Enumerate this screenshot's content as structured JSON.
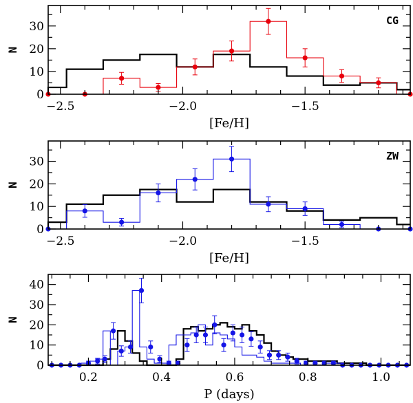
{
  "chart_data": [
    {
      "type": "histogram",
      "panel_label": "CG",
      "xlabel": "[Fe/H]",
      "ylabel": "N",
      "xlim": [
        -2.55,
        -1.07
      ],
      "ylim": [
        0,
        39
      ],
      "xticks": [
        -2.5,
        -2.0,
        -1.5
      ],
      "xtick_labels": [
        "−2.5",
        "−2.0",
        "−1.5"
      ],
      "minor_xticks": [
        -2.4,
        -2.3,
        -2.2,
        -2.1,
        -1.9,
        -1.8,
        -1.7,
        -1.6,
        -1.4,
        -1.3,
        -1.2,
        -1.1
      ],
      "yticks": [
        0,
        10,
        20,
        30
      ],
      "ytick_labels": [
        "0",
        "10",
        "20",
        "30"
      ],
      "minor_yticks": [
        5,
        15,
        25,
        35
      ],
      "reference": {
        "name": "black histogram",
        "color": "#000000",
        "edges": [
          -2.55,
          -2.475,
          -2.325,
          -2.175,
          -2.025,
          -1.875,
          -1.725,
          -1.575,
          -1.425,
          -1.275,
          -1.125,
          -1.07
        ],
        "counts": [
          3,
          11,
          15,
          17.5,
          12,
          17.5,
          12,
          8,
          4,
          5,
          2
        ]
      },
      "observed": {
        "name": "red histogram",
        "color": "#e8000b",
        "edges": [
          -2.55,
          -2.475,
          -2.325,
          -2.175,
          -2.025,
          -1.875,
          -1.725,
          -1.575,
          -1.425,
          -1.275,
          -1.125,
          -1.07
        ],
        "counts": [
          0,
          0,
          7,
          3,
          12,
          19,
          32,
          16,
          8,
          5,
          0
        ],
        "points": [
          {
            "x": -2.55,
            "y": 0,
            "err": 0
          },
          {
            "x": -2.4,
            "y": 0,
            "err": 0
          },
          {
            "x": -2.25,
            "y": 7,
            "err": 2.6
          },
          {
            "x": -2.1,
            "y": 3,
            "err": 1.7
          },
          {
            "x": -1.95,
            "y": 12,
            "err": 3.5
          },
          {
            "x": -1.8,
            "y": 19,
            "err": 4.4
          },
          {
            "x": -1.65,
            "y": 32,
            "err": 5.7
          },
          {
            "x": -1.5,
            "y": 16,
            "err": 4.0
          },
          {
            "x": -1.35,
            "y": 8,
            "err": 2.8
          },
          {
            "x": -1.2,
            "y": 5,
            "err": 2.2
          },
          {
            "x": -1.07,
            "y": 0,
            "err": 0
          }
        ]
      }
    },
    {
      "type": "histogram",
      "panel_label": "ZW",
      "xlabel": "[Fe/H]",
      "ylabel": "N",
      "xlim": [
        -2.55,
        -1.07
      ],
      "ylim": [
        0,
        39
      ],
      "xticks": [
        -2.5,
        -2.0,
        -1.5
      ],
      "xtick_labels": [
        "−2.5",
        "−2.0",
        "−1.5"
      ],
      "minor_xticks": [
        -2.4,
        -2.3,
        -2.2,
        -2.1,
        -1.9,
        -1.8,
        -1.7,
        -1.6,
        -1.4,
        -1.3,
        -1.2,
        -1.1
      ],
      "yticks": [
        0,
        10,
        20,
        30
      ],
      "ytick_labels": [
        "0",
        "10",
        "20",
        "30"
      ],
      "minor_yticks": [
        5,
        15,
        25,
        35
      ],
      "reference": {
        "name": "black histogram",
        "color": "#000000",
        "edges": [
          -2.55,
          -2.475,
          -2.325,
          -2.175,
          -2.025,
          -1.875,
          -1.725,
          -1.575,
          -1.425,
          -1.275,
          -1.125,
          -1.07
        ],
        "counts": [
          3,
          11,
          15,
          17.5,
          12,
          17.5,
          12,
          8,
          4,
          5,
          2
        ]
      },
      "observed": {
        "name": "blue histogram",
        "color": "#1515e6",
        "edges": [
          -2.55,
          -2.475,
          -2.325,
          -2.175,
          -2.025,
          -1.875,
          -1.725,
          -1.575,
          -1.425,
          -1.275,
          -1.125,
          -1.07
        ],
        "counts": [
          0,
          8,
          3,
          16,
          22,
          31,
          11,
          9,
          2,
          0,
          0
        ],
        "points": [
          {
            "x": -2.55,
            "y": 0,
            "err": 0
          },
          {
            "x": -2.4,
            "y": 8,
            "err": 2.8
          },
          {
            "x": -2.25,
            "y": 3,
            "err": 1.7
          },
          {
            "x": -2.1,
            "y": 16,
            "err": 4.0
          },
          {
            "x": -1.95,
            "y": 22,
            "err": 4.7
          },
          {
            "x": -1.8,
            "y": 31,
            "err": 5.6
          },
          {
            "x": -1.65,
            "y": 11,
            "err": 3.3
          },
          {
            "x": -1.5,
            "y": 9,
            "err": 3.0
          },
          {
            "x": -1.35,
            "y": 2,
            "err": 1.4
          },
          {
            "x": -1.2,
            "y": 0,
            "err": 0
          },
          {
            "x": -1.07,
            "y": 0,
            "err": 0
          }
        ]
      }
    },
    {
      "type": "histogram",
      "xlabel": "P (days)",
      "ylabel": "N",
      "xlim": [
        0.09,
        1.08
      ],
      "ylim": [
        0,
        45
      ],
      "xticks": [
        0.2,
        0.4,
        0.6,
        0.8,
        1.0
      ],
      "xtick_labels": [
        "0.2",
        "0.4",
        "0.6",
        "0.8",
        "1.0"
      ],
      "minor_xticks": [
        0.1,
        0.15,
        0.25,
        0.3,
        0.35,
        0.45,
        0.5,
        0.55,
        0.65,
        0.7,
        0.75,
        0.85,
        0.9,
        0.95,
        1.05
      ],
      "yticks": [
        0,
        10,
        20,
        30,
        40
      ],
      "ytick_labels": [
        "0",
        "10",
        "20",
        "30",
        "40"
      ],
      "minor_yticks": [
        5,
        15,
        25,
        35
      ],
      "reference": {
        "name": "black histogram",
        "color": "#000000",
        "edges": [
          0.09,
          0.24,
          0.26,
          0.28,
          0.3,
          0.32,
          0.34,
          0.36,
          0.38,
          0.4,
          0.44,
          0.46,
          0.48,
          0.5,
          0.52,
          0.54,
          0.56,
          0.58,
          0.6,
          0.62,
          0.64,
          0.66,
          0.68,
          0.7,
          0.72,
          0.74,
          0.76,
          0.78,
          0.8,
          0.84,
          0.88,
          0.92,
          0.96,
          1.08
        ],
        "counts": [
          0,
          3,
          8,
          17,
          12,
          6,
          2,
          0,
          0,
          0,
          3,
          18,
          19,
          17,
          18,
          20,
          21,
          19,
          18,
          20,
          17,
          15,
          11,
          7,
          5,
          4,
          3,
          3,
          2,
          2,
          1,
          1,
          0
        ]
      },
      "observed": {
        "name": "blue histogram",
        "color": "#1515e6",
        "edges": [
          0.09,
          0.1,
          0.12,
          0.14,
          0.16,
          0.18,
          0.2,
          0.22,
          0.24,
          0.26,
          0.28,
          0.3,
          0.32,
          0.34,
          0.36,
          0.38,
          0.4,
          0.42,
          0.44,
          0.46,
          0.48,
          0.5,
          0.52,
          0.54,
          0.56,
          0.58,
          0.6,
          0.62,
          0.64,
          0.66,
          0.68,
          0.7,
          0.72,
          0.74,
          0.76,
          0.78,
          0.8,
          0.82,
          0.84,
          0.86,
          0.88,
          0.9,
          0.92,
          0.94,
          0.96,
          0.98,
          1.0,
          1.02,
          1.04,
          1.06,
          1.08
        ],
        "counts": [
          0,
          0,
          0,
          0,
          0,
          1,
          2,
          3,
          17,
          0,
          7,
          9,
          37,
          9,
          3,
          1,
          1,
          10,
          15,
          15,
          16,
          20,
          10,
          16,
          15,
          13,
          9,
          5,
          5,
          4,
          2,
          1,
          1,
          1,
          1,
          0,
          0,
          0,
          1,
          1,
          1,
          0,
          0,
          0,
          0,
          0,
          0,
          0,
          0,
          0
        ],
        "points": [
          {
            "x": 0.1,
            "y": 0,
            "err": 0
          },
          {
            "x": 0.125,
            "y": 0,
            "err": 0
          },
          {
            "x": 0.15,
            "y": 0,
            "err": 0
          },
          {
            "x": 0.175,
            "y": 0,
            "err": 0
          },
          {
            "x": 0.2,
            "y": 1,
            "err": 1
          },
          {
            "x": 0.225,
            "y": 2,
            "err": 1.4
          },
          {
            "x": 0.245,
            "y": 3,
            "err": 1.7
          },
          {
            "x": 0.268,
            "y": 17,
            "err": 4.1
          },
          {
            "x": 0.29,
            "y": 7,
            "err": 2.6
          },
          {
            "x": 0.315,
            "y": 9,
            "err": 3
          },
          {
            "x": 0.345,
            "y": 37,
            "err": 6.1
          },
          {
            "x": 0.37,
            "y": 9,
            "err": 3
          },
          {
            "x": 0.395,
            "y": 3,
            "err": 1.7
          },
          {
            "x": 0.42,
            "y": 1,
            "err": 1
          },
          {
            "x": 0.445,
            "y": 1,
            "err": 1
          },
          {
            "x": 0.47,
            "y": 10,
            "err": 3.2
          },
          {
            "x": 0.495,
            "y": 15,
            "err": 3.9
          },
          {
            "x": 0.52,
            "y": 15,
            "err": 3.9
          },
          {
            "x": 0.545,
            "y": 20,
            "err": 4.5
          },
          {
            "x": 0.57,
            "y": 10,
            "err": 3.2
          },
          {
            "x": 0.595,
            "y": 16,
            "err": 4
          },
          {
            "x": 0.62,
            "y": 15,
            "err": 3.9
          },
          {
            "x": 0.645,
            "y": 13,
            "err": 3.6
          },
          {
            "x": 0.67,
            "y": 9,
            "err": 3
          },
          {
            "x": 0.695,
            "y": 5,
            "err": 2.2
          },
          {
            "x": 0.72,
            "y": 5,
            "err": 2.2
          },
          {
            "x": 0.745,
            "y": 4,
            "err": 2
          },
          {
            "x": 0.77,
            "y": 2,
            "err": 1.4
          },
          {
            "x": 0.795,
            "y": 1,
            "err": 1
          },
          {
            "x": 0.82,
            "y": 1,
            "err": 1
          },
          {
            "x": 0.845,
            "y": 1,
            "err": 1
          },
          {
            "x": 0.87,
            "y": 1,
            "err": 1
          },
          {
            "x": 0.895,
            "y": 0,
            "err": 0
          },
          {
            "x": 0.92,
            "y": 0,
            "err": 0
          },
          {
            "x": 0.945,
            "y": 0,
            "err": 0
          },
          {
            "x": 0.97,
            "y": 0,
            "err": 0
          },
          {
            "x": 0.995,
            "y": 0,
            "err": 0
          },
          {
            "x": 1.02,
            "y": 0,
            "err": 0
          },
          {
            "x": 1.045,
            "y": 0,
            "err": 0
          },
          {
            "x": 1.07,
            "y": 0,
            "err": 0
          }
        ]
      }
    }
  ]
}
